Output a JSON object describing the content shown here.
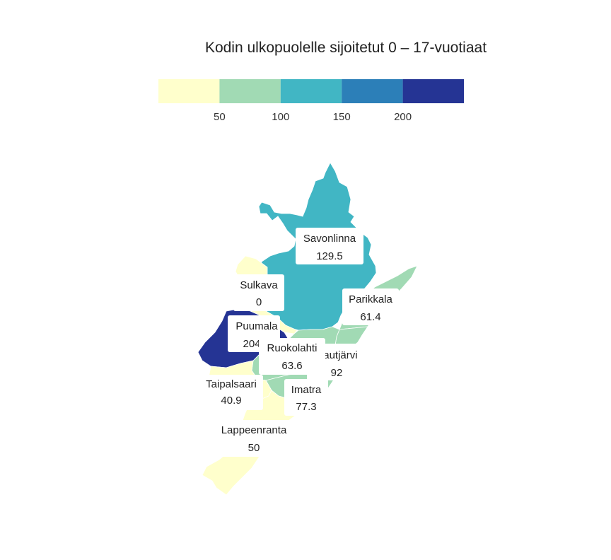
{
  "title": "Kodin ulkopuolelle sijoitetut 0 – 17-vuotiaat",
  "legend": {
    "colors": [
      "#ffffcc",
      "#a1dab4",
      "#41b6c4",
      "#2c7fb8",
      "#253494"
    ],
    "tick_labels": [
      "50",
      "100",
      "150",
      "200"
    ]
  },
  "regions": [
    {
      "id": "savonlinna",
      "name": "Savonlinna",
      "value_label": "129.5",
      "value": 129.5,
      "color": "#41b6c4"
    },
    {
      "id": "sulkava",
      "name": "Sulkava",
      "value_label": "0",
      "value": 0,
      "color": "#ffffcc"
    },
    {
      "id": "parikkala",
      "name": "Parikkala",
      "value_label": "61.4",
      "value": 61.4,
      "color": "#a1dab4"
    },
    {
      "id": "puumala",
      "name": "Puumala",
      "value_label": "204",
      "value": 204,
      "color": "#253494"
    },
    {
      "id": "rautjarvi",
      "name": "Rautjärvi",
      "value_label": "92",
      "value": 92,
      "color": "#a1dab4"
    },
    {
      "id": "ruokolahti",
      "name": "Ruokolahti",
      "value_label": "63.6",
      "value": 63.6,
      "color": "#a1dab4"
    },
    {
      "id": "taipalsaari",
      "name": "Taipalsaari",
      "value_label": "40.9",
      "value": 40.9,
      "color": "#ffffcc"
    },
    {
      "id": "imatra",
      "name": "Imatra",
      "value_label": "77.3",
      "value": 77.3,
      "color": "#a1dab4"
    },
    {
      "id": "lappeenranta",
      "name": "Lappeenranta",
      "value_label": "50",
      "value": 50,
      "color": "#ffffcc"
    }
  ]
}
